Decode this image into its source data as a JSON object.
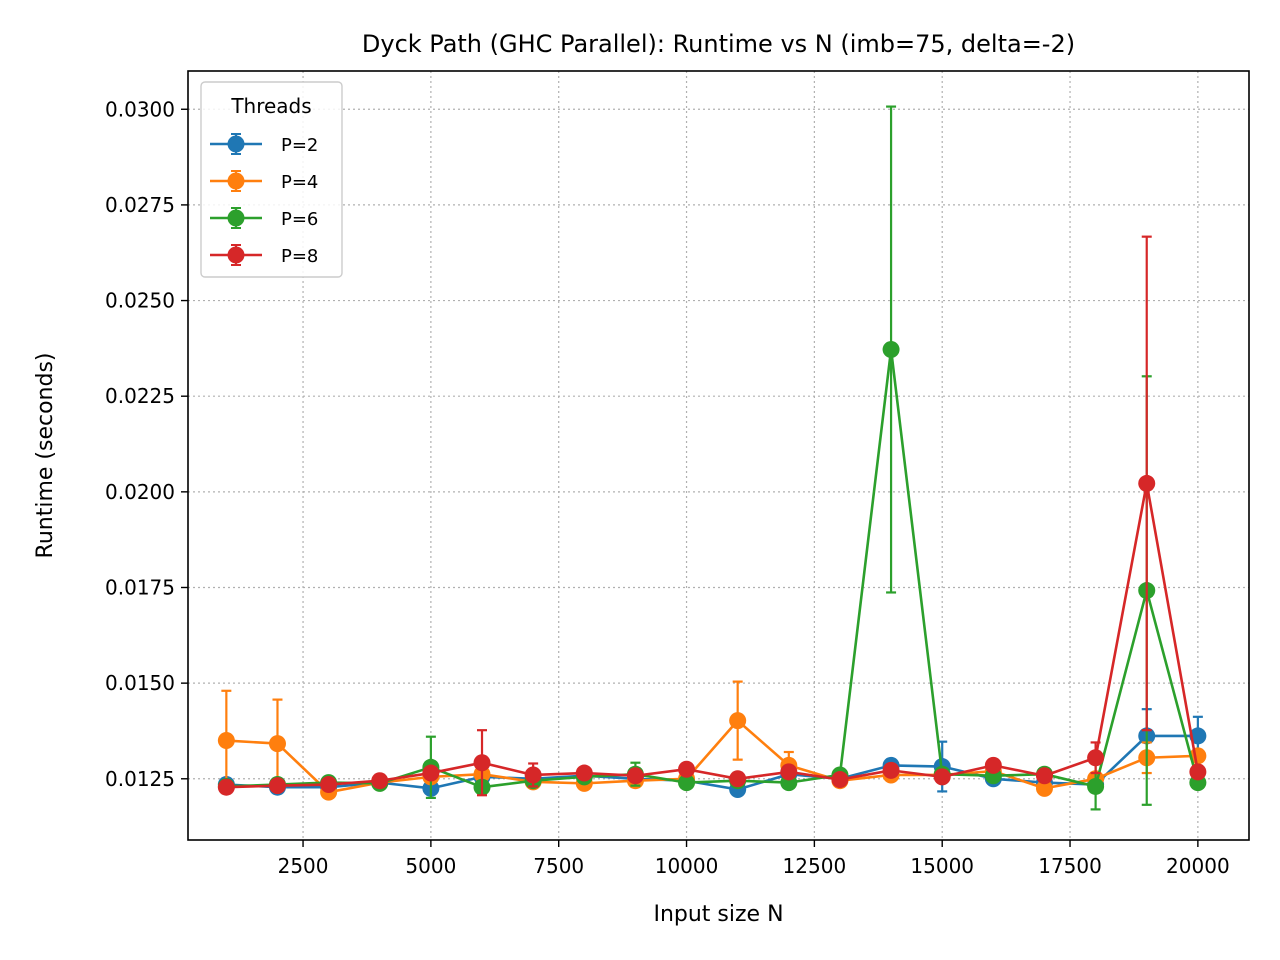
{
  "chart_data": {
    "type": "line",
    "title": "Dyck Path (GHC Parallel): Runtime vs N  (imb=75, delta=-2)",
    "xlabel": "Input size N",
    "ylabel": "Runtime (seconds)",
    "xlim": [
      250,
      21000
    ],
    "ylim": [
      0.0109,
      0.031
    ],
    "xticks": [
      2500,
      5000,
      7500,
      10000,
      12500,
      15000,
      17500,
      20000
    ],
    "yticks": [
      0.0125,
      0.015,
      0.0175,
      0.02,
      0.0225,
      0.025,
      0.0275,
      0.03
    ],
    "ytick_labels": [
      "0.0125",
      "0.0150",
      "0.0175",
      "0.0200",
      "0.0225",
      "0.0250",
      "0.0275",
      "0.0300"
    ],
    "grid": true,
    "legend_title": "Threads",
    "legend_position": "top-left",
    "x": [
      1000,
      2000,
      3000,
      4000,
      5000,
      6000,
      7000,
      8000,
      9000,
      10000,
      11000,
      12000,
      13000,
      14000,
      15000,
      16000,
      17000,
      18000,
      19000,
      20000
    ],
    "series": [
      {
        "name": "P=2",
        "color": "#1f77b4",
        "values": [
          0.01235,
          0.01228,
          0.01228,
          0.0124,
          0.01225,
          0.01255,
          0.0125,
          0.01258,
          0.0125,
          0.01245,
          0.01222,
          0.01262,
          0.0125,
          0.01285,
          0.01282,
          0.0125,
          0.0124,
          0.01235,
          0.01362,
          0.01362
        ],
        "errors": [
          0.0001,
          0.0001,
          0.0001,
          0.0001,
          0.0001,
          0.0001,
          0.0001,
          0.0001,
          0.0001,
          0.0001,
          0.0001,
          0.0001,
          0.0001,
          0.0001,
          0.00065,
          0.0001,
          0.0001,
          0.0001,
          0.0007,
          0.0005
        ]
      },
      {
        "name": "P=4",
        "color": "#ff7f0e",
        "values": [
          0.0135,
          0.01342,
          0.01215,
          0.0124,
          0.01255,
          0.01262,
          0.01242,
          0.01238,
          0.01245,
          0.0125,
          0.01402,
          0.01285,
          0.01245,
          0.0126,
          0.0126,
          0.0127,
          0.01225,
          0.0125,
          0.01305,
          0.0131
        ],
        "errors": [
          0.0013,
          0.00115,
          0.0001,
          0.0001,
          0.0001,
          0.0001,
          0.0001,
          0.0001,
          0.0001,
          0.0001,
          0.00102,
          0.00035,
          0.0001,
          0.0001,
          0.0001,
          0.0001,
          0.0001,
          0.0001,
          0.0004,
          0.0001
        ]
      },
      {
        "name": "P=6",
        "color": "#2ca02c",
        "values": [
          0.0123,
          0.01235,
          0.0124,
          0.01238,
          0.0128,
          0.01228,
          0.01245,
          0.01255,
          0.01262,
          0.0124,
          0.01245,
          0.0124,
          0.0126,
          0.02372,
          0.01262,
          0.01258,
          0.01262,
          0.0123,
          0.01742,
          0.0124
        ],
        "errors": [
          0.0001,
          0.0001,
          0.0001,
          0.0001,
          0.0008,
          0.0001,
          0.0001,
          0.0001,
          0.0003,
          0.0001,
          0.0001,
          0.0001,
          0.0001,
          0.00635,
          0.0001,
          0.0001,
          0.0001,
          0.0006,
          0.0056,
          0.0001
        ]
      },
      {
        "name": "P=8",
        "color": "#d62728",
        "values": [
          0.01228,
          0.01232,
          0.01235,
          0.01245,
          0.01265,
          0.01292,
          0.0126,
          0.01265,
          0.01258,
          0.01275,
          0.0125,
          0.01268,
          0.01248,
          0.01272,
          0.01255,
          0.01285,
          0.01258,
          0.01305,
          0.02022,
          0.01268
        ],
        "errors": [
          0.0001,
          0.0001,
          0.0001,
          0.0001,
          0.0001,
          0.00085,
          0.0003,
          0.0001,
          0.0001,
          0.0001,
          0.0001,
          0.0001,
          0.0001,
          0.0001,
          0.0001,
          0.0001,
          0.0001,
          0.0004,
          0.00645,
          0.0001
        ]
      }
    ]
  }
}
